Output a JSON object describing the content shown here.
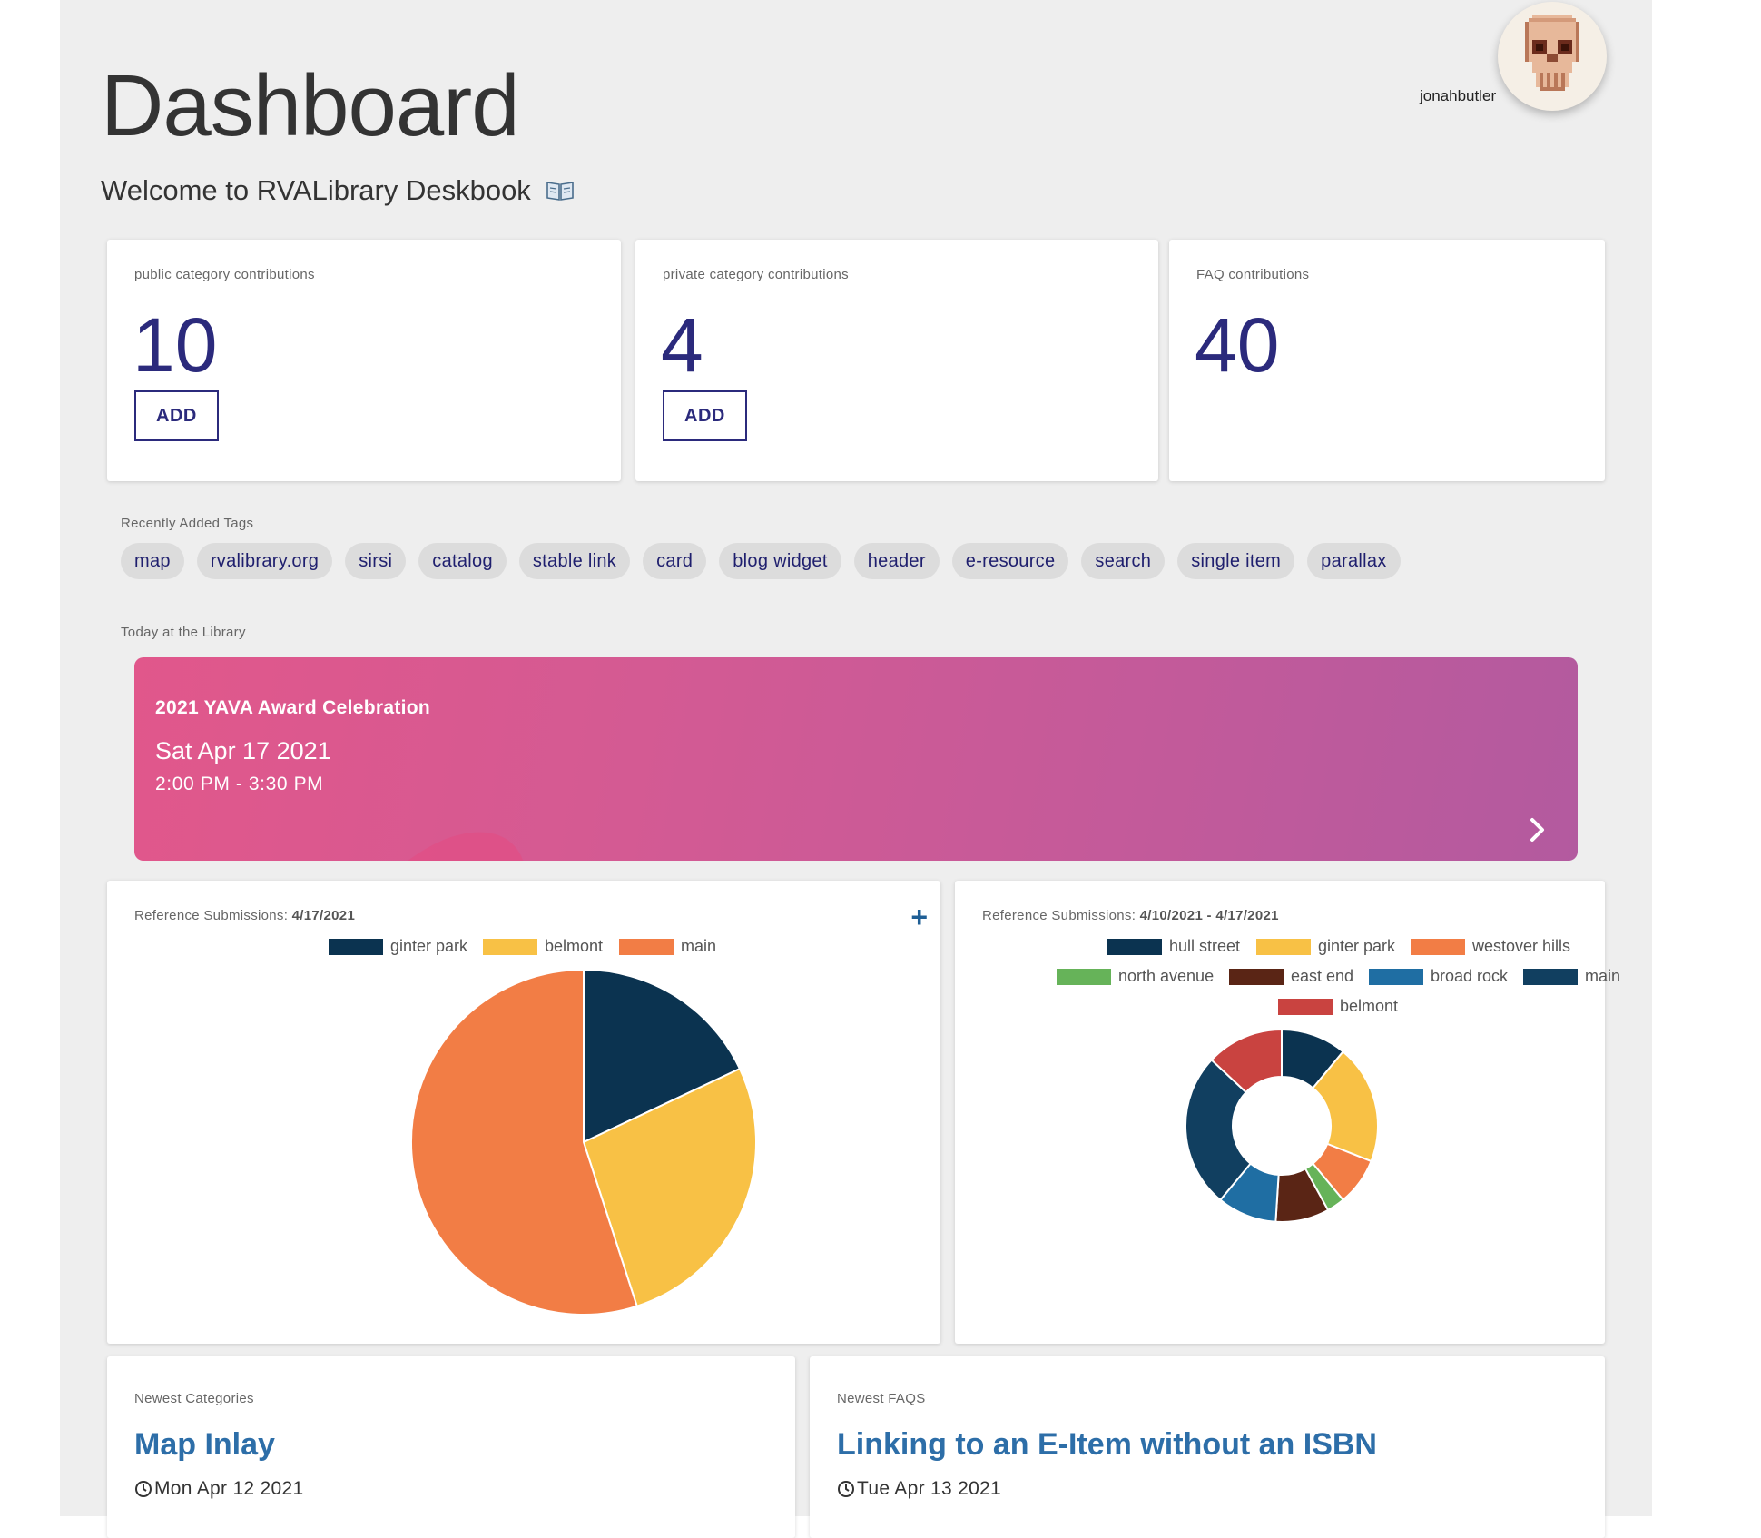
{
  "header": {
    "title": "Dashboard",
    "subtitle": "Welcome to RVALibrary Deskbook",
    "username": "jonahbutler"
  },
  "stats": [
    {
      "label": "public category contributions",
      "value": "10",
      "button": "ADD"
    },
    {
      "label": "private category contributions",
      "value": "4",
      "button": "ADD"
    },
    {
      "label": "FAQ contributions",
      "value": "40"
    }
  ],
  "tags": {
    "label": "Recently Added Tags",
    "items": [
      "map",
      "rvalibrary.org",
      "sirsi",
      "catalog",
      "stable link",
      "card",
      "blog widget",
      "header",
      "e-resource",
      "search",
      "single item",
      "parallax"
    ]
  },
  "today": {
    "label": "Today at the Library",
    "event_name": "2021 YAVA Award Celebration",
    "event_date": "Sat Apr 17 2021",
    "event_time": "2:00 PM - 3:30 PM"
  },
  "chart_data": [
    {
      "type": "pie",
      "title_prefix": "Reference Submissions:",
      "title_date": "4/17/2021",
      "legend_position": "top",
      "categories": [
        "ginter park",
        "belmont",
        "main"
      ],
      "values": [
        18,
        27,
        55
      ],
      "colors": [
        "#0b3350",
        "#f8c145",
        "#f27d45"
      ]
    },
    {
      "type": "doughnut",
      "title_prefix": "Reference Submissions:",
      "title_date": "4/10/2021 - 4/17/2021",
      "legend_position": "top",
      "categories": [
        "hull street",
        "ginter park",
        "westover hills",
        "north avenue",
        "east end",
        "broad rock",
        "main",
        "belmont"
      ],
      "values": [
        11,
        20,
        8,
        3,
        9,
        10,
        26,
        13
      ],
      "colors": [
        "#0b3350",
        "#f8c145",
        "#f27d45",
        "#66b359",
        "#5a2515",
        "#1f6ea3",
        "#113f60",
        "#c94340"
      ]
    }
  ],
  "newest_categories": {
    "label": "Newest Categories",
    "title": "Map Inlay",
    "date": "Mon Apr 12 2021"
  },
  "newest_faqs": {
    "label": "Newest FAQS",
    "title": "Linking to an E-Item without an ISBN",
    "date": "Tue Apr 13 2021"
  },
  "icons": {
    "book": "open-book-icon",
    "next": "chevron-right-icon",
    "add": "plus-icon",
    "clock": "clock-icon",
    "avatar": "pixel-skull-avatar"
  }
}
